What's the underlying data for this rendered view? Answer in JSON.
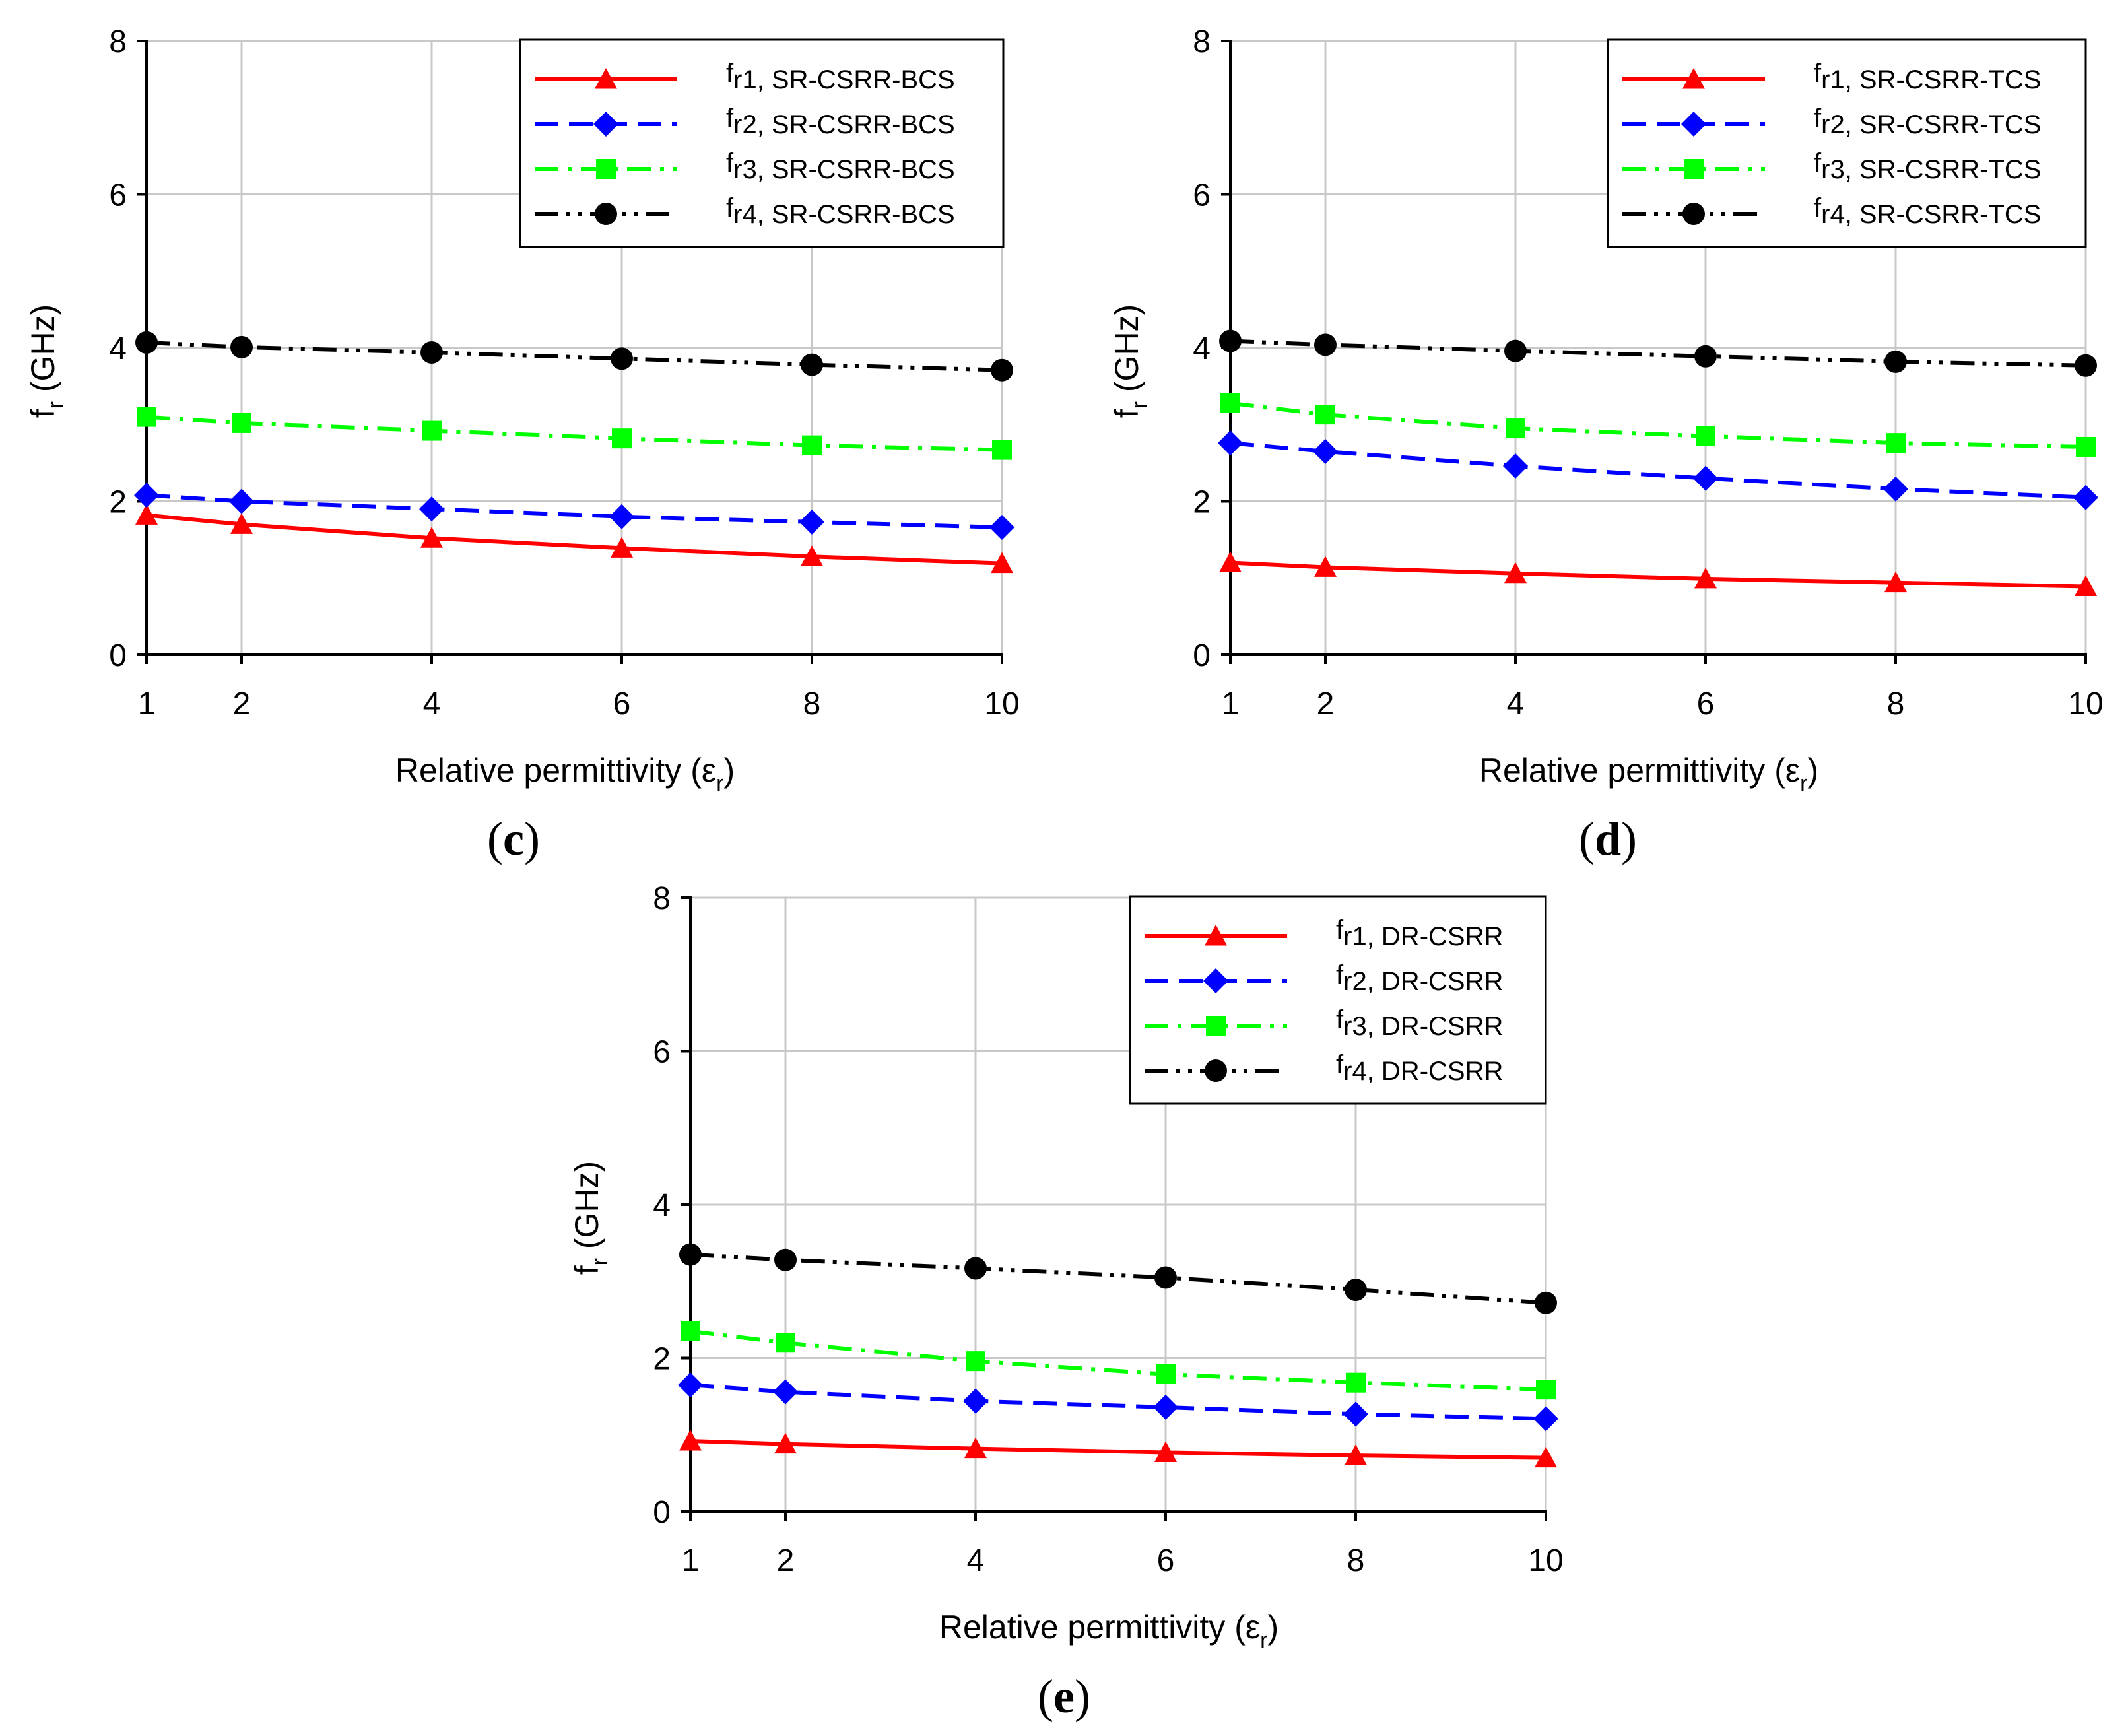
{
  "chart_data": [
    {
      "type": "line",
      "panel_label": "c",
      "caption_open": "(",
      "caption_close": ")",
      "xlabel": "Relative permittivity (ε",
      "xlabel_sub": "r",
      "xlabel_close": ")",
      "ylabel": "f",
      "ylabel_sub": "r",
      "ylabel_unit": " (GHz)",
      "xlim": [
        1,
        10
      ],
      "ylim": [
        0,
        8
      ],
      "x_ticks": [
        1,
        2,
        4,
        6,
        8,
        10
      ],
      "y_ticks": [
        0,
        2,
        4,
        6,
        8
      ],
      "grid": true,
      "legend_position": "top-right",
      "x": [
        1,
        2,
        4,
        6,
        8,
        10
      ],
      "series": [
        {
          "name_main": "f",
          "name_sub": "r1, ",
          "name_rest": "SR-CSRR-BCS",
          "color": "#ff0000",
          "marker": "triangle",
          "dash": "solid",
          "values": [
            1.82,
            1.7,
            1.52,
            1.39,
            1.28,
            1.19
          ]
        },
        {
          "name_main": "f",
          "name_sub": "r2, ",
          "name_rest": "SR-CSRR-BCS",
          "color": "#0000ff",
          "marker": "diamond",
          "dash": "dash",
          "values": [
            2.08,
            2.0,
            1.9,
            1.8,
            1.73,
            1.66
          ]
        },
        {
          "name_main": "f",
          "name_sub": "r3, ",
          "name_rest": "SR-CSRR-BCS",
          "color": "#00ff00",
          "marker": "square",
          "dash": "dashdot",
          "values": [
            3.1,
            3.02,
            2.92,
            2.82,
            2.73,
            2.67
          ]
        },
        {
          "name_main": "f",
          "name_sub": "r4, ",
          "name_rest": "SR-CSRR-BCS",
          "color": "#000000",
          "marker": "circle",
          "dash": "dashdotdot",
          "values": [
            4.07,
            4.01,
            3.94,
            3.86,
            3.78,
            3.71
          ]
        }
      ]
    },
    {
      "type": "line",
      "panel_label": "d",
      "caption_open": "(",
      "caption_close": ")",
      "xlabel": "Relative permittivity (ε",
      "xlabel_sub": "r",
      "xlabel_close": ")",
      "ylabel": "f",
      "ylabel_sub": "r",
      "ylabel_unit": " (GHz)",
      "xlim": [
        1,
        10
      ],
      "ylim": [
        0,
        8
      ],
      "x_ticks": [
        1,
        2,
        4,
        6,
        8,
        10
      ],
      "y_ticks": [
        0,
        2,
        4,
        6,
        8
      ],
      "grid": true,
      "legend_position": "top-right",
      "x": [
        1,
        2,
        4,
        6,
        8,
        10
      ],
      "series": [
        {
          "name_main": "f",
          "name_sub": "r1, ",
          "name_rest": "SR-CSRR-TCS",
          "color": "#ff0000",
          "marker": "triangle",
          "dash": "solid",
          "values": [
            1.2,
            1.14,
            1.06,
            0.99,
            0.94,
            0.89
          ]
        },
        {
          "name_main": "f",
          "name_sub": "r2, ",
          "name_rest": "SR-CSRR-TCS",
          "color": "#0000ff",
          "marker": "diamond",
          "dash": "dash",
          "values": [
            2.76,
            2.65,
            2.46,
            2.3,
            2.16,
            2.05
          ]
        },
        {
          "name_main": "f",
          "name_sub": "r3, ",
          "name_rest": "SR-CSRR-TCS",
          "color": "#00ff00",
          "marker": "square",
          "dash": "dashdot",
          "values": [
            3.28,
            3.13,
            2.95,
            2.85,
            2.76,
            2.71
          ]
        },
        {
          "name_main": "f",
          "name_sub": "r4, ",
          "name_rest": "SR-CSRR-TCS",
          "color": "#000000",
          "marker": "circle",
          "dash": "dashdotdot",
          "values": [
            4.09,
            4.04,
            3.96,
            3.89,
            3.82,
            3.77
          ]
        }
      ]
    },
    {
      "type": "line",
      "panel_label": "e",
      "caption_open": "(",
      "caption_close": ")",
      "xlabel": "Relative permittivity (ε",
      "xlabel_sub": "r",
      "xlabel_close": ")",
      "ylabel": "f",
      "ylabel_sub": "r",
      "ylabel_unit": " (GHz)",
      "xlim": [
        1,
        10
      ],
      "ylim": [
        0,
        8
      ],
      "x_ticks": [
        1,
        2,
        4,
        6,
        8,
        10
      ],
      "y_ticks": [
        0,
        2,
        4,
        6,
        8
      ],
      "grid": true,
      "legend_position": "top-right",
      "x": [
        1,
        2,
        4,
        6,
        8,
        10
      ],
      "series": [
        {
          "name_main": "f",
          "name_sub": "r1, ",
          "name_rest": "DR-CSRR",
          "color": "#ff0000",
          "marker": "triangle",
          "dash": "solid",
          "values": [
            0.92,
            0.88,
            0.82,
            0.77,
            0.73,
            0.7
          ]
        },
        {
          "name_main": "f",
          "name_sub": "r2, ",
          "name_rest": "DR-CSRR",
          "color": "#0000ff",
          "marker": "diamond",
          "dash": "dash",
          "values": [
            1.65,
            1.56,
            1.44,
            1.36,
            1.27,
            1.21
          ]
        },
        {
          "name_main": "f",
          "name_sub": "r3, ",
          "name_rest": "DR-CSRR",
          "color": "#00ff00",
          "marker": "square",
          "dash": "dashdot",
          "values": [
            2.35,
            2.2,
            1.96,
            1.79,
            1.68,
            1.59
          ]
        },
        {
          "name_main": "f",
          "name_sub": "r4, ",
          "name_rest": "DR-CSRR",
          "color": "#000000",
          "marker": "circle",
          "dash": "dashdotdot",
          "values": [
            3.35,
            3.28,
            3.17,
            3.05,
            2.89,
            2.72
          ]
        }
      ]
    }
  ]
}
